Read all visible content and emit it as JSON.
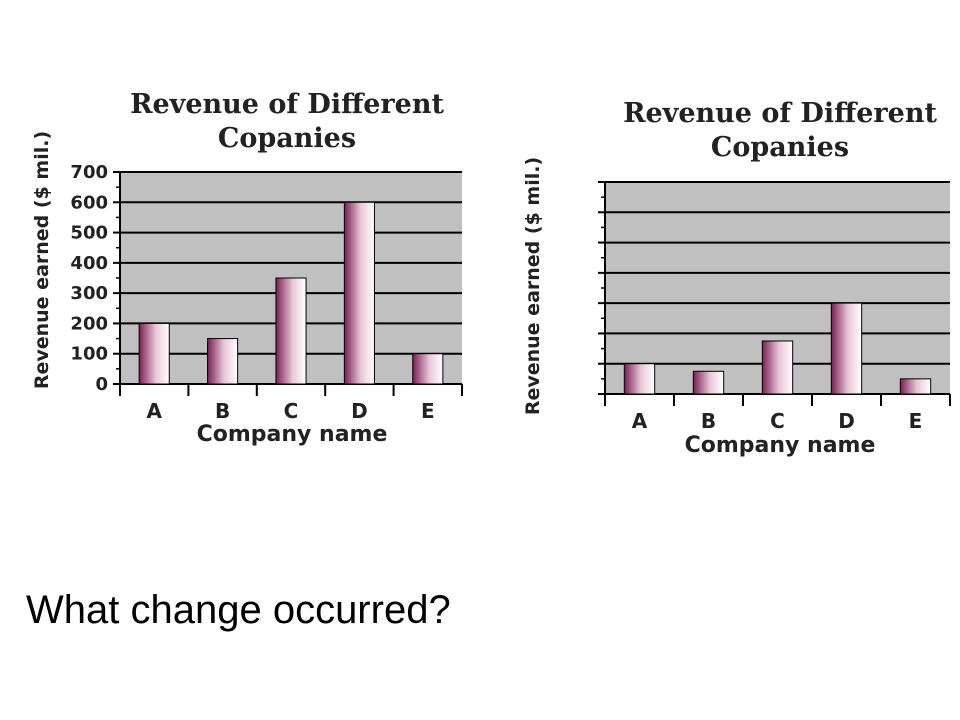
{
  "chart_data": [
    {
      "type": "bar",
      "title": "Revenue of Different\nCopanies",
      "xlabel": "Company name",
      "ylabel": "Revenue earned ($ mil.)",
      "categories": [
        "A",
        "B",
        "C",
        "D",
        "E"
      ],
      "values": [
        200,
        150,
        350,
        600,
        100
      ],
      "ylim": [
        0,
        700
      ],
      "yticks": [
        "0",
        "100",
        "200",
        "300",
        "400",
        "500",
        "600",
        "700"
      ],
      "grid": true
    },
    {
      "type": "bar",
      "title": "Revenue of Different\nCopanies",
      "xlabel": "Company name",
      "ylabel": "Revenue earned ($ mil.)",
      "categories": [
        "A",
        "B",
        "C",
        "D",
        "E"
      ],
      "values": [
        100,
        75,
        175,
        300,
        50
      ],
      "ylim": [
        0,
        700
      ],
      "yticks": [],
      "grid": true
    }
  ],
  "colors": {
    "plot_background": "#c0c0c0",
    "bar_dark": "#7a1f55",
    "bar_light": "#ffffff",
    "gridline": "#000000"
  },
  "question": "What change occurred?"
}
